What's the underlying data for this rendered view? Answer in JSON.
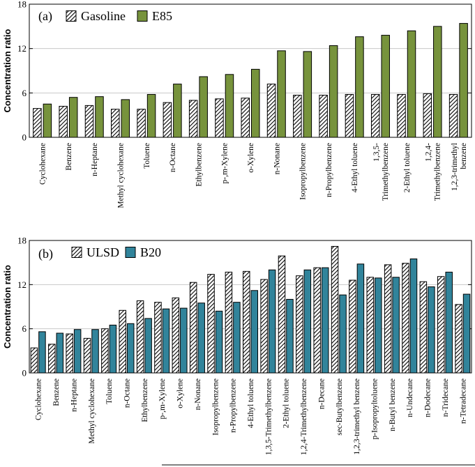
{
  "chart_data": [
    {
      "type": "bar",
      "panel_label": "(a)",
      "ylabel": "Concentration ratio",
      "ylim": [
        0,
        18
      ],
      "yticks": [
        "0",
        "6",
        "12",
        "18"
      ],
      "legend_position": "top-left",
      "categories": [
        "Cyclohexane",
        "Benzene",
        "n-Heptane",
        "Methyl cyclohexane",
        "Toluene",
        "n-Octane",
        "Ethylbenzene",
        "p-,m-Xylene",
        "o-Xylene",
        "n-Nonane",
        "Isopropylbenzene",
        "n-Propylbenzene",
        "4-Ethyl toluene",
        "1,3,5-Trimethylbenzene",
        "2-Ethyl toluene",
        "1,2,4-Trimethylbenzene",
        "1,2,3-trimethyl benzene"
      ],
      "category_lines": [
        [
          "Cyclohexane"
        ],
        [
          "Benzene"
        ],
        [
          "n-Heptane"
        ],
        [
          "Methyl cyclohexane"
        ],
        [
          "Toluene"
        ],
        [
          "n-Octane"
        ],
        [
          "Ethylbenzene"
        ],
        [
          "p-,m-Xylene"
        ],
        [
          "o-Xylene"
        ],
        [
          "n-Nonane"
        ],
        [
          "Isopropylbenzene"
        ],
        [
          "n-Propylbenzene"
        ],
        [
          "4-Ethyl toluene"
        ],
        [
          "1,3,5-",
          "Trimethylbenzene"
        ],
        [
          "2-Ethyl toluene"
        ],
        [
          "1,2,4-",
          "Trimethylbenzene"
        ],
        [
          "1,2,3-trimethyl",
          "benzene"
        ]
      ],
      "series": [
        {
          "name": "Gasoline",
          "pattern": "hatched",
          "values": [
            3.9,
            4.2,
            4.3,
            3.8,
            3.8,
            4.7,
            5.0,
            5.2,
            5.3,
            7.2,
            5.7,
            5.7,
            5.8,
            5.8,
            5.8,
            5.9,
            5.8
          ]
        },
        {
          "name": "E85",
          "pattern": "solid",
          "color": "#77933c",
          "values": [
            4.5,
            5.4,
            5.5,
            5.1,
            5.8,
            7.2,
            8.2,
            8.5,
            9.2,
            11.7,
            11.6,
            12.4,
            13.6,
            13.8,
            14.4,
            15.0,
            15.4
          ]
        }
      ]
    },
    {
      "type": "bar",
      "panel_label": "(b)",
      "ylabel": "Concentration ratio",
      "ylim": [
        0,
        18
      ],
      "yticks": [
        "0",
        "6",
        "12",
        "18"
      ],
      "legend_position": "top-left",
      "categories": [
        "Cyclohexane",
        "Benzene",
        "n-Heptane",
        "Methyl cyclohexane",
        "Toluene",
        "n-Octane",
        "Ethylbenzene",
        "p-,m-Xylene",
        "o-Xylene",
        "n-Nonane",
        "Isopropylbenzene",
        "n-Propylbenzene",
        "4-Ethyl toluene",
        "1,3,5-Trimethylbenzene",
        "2-Ethyl toluene",
        "1,2,4-Trimethylbenzene",
        "n-Decane",
        "sec-Butylbenzene",
        "1,2,3-trimethyl benzene",
        "p-Isopropyltoluene",
        "n-Butyl benzene",
        "n-Undecane",
        "n-Dodecane",
        "n-Tridecane",
        "n-Tetradecane"
      ],
      "category_lines": [
        [
          "Cyclohexane"
        ],
        [
          "Benzene"
        ],
        [
          "n-Heptane"
        ],
        [
          "Methyl cyclohexane"
        ],
        [
          "Toluene"
        ],
        [
          "n-Octane"
        ],
        [
          "Ethylbenzene"
        ],
        [
          "p-,m-Xylene"
        ],
        [
          "o-Xylene"
        ],
        [
          "n-Nonane"
        ],
        [
          "Isopropylbenzene"
        ],
        [
          "n-Propylbenzene"
        ],
        [
          "4-Ethyl toluene"
        ],
        [
          "1,3,5-Trimethylbenzene"
        ],
        [
          "2-Ethyl toluene"
        ],
        [
          "1,2,4-Trimethylbenzene"
        ],
        [
          "n-Decane"
        ],
        [
          "sec-Butylbenzene"
        ],
        [
          "1,2,3-trimethyl benzene"
        ],
        [
          "p-Isopropyltoluene"
        ],
        [
          "n-Butyl benzene"
        ],
        [
          "n-Undecane"
        ],
        [
          "n-Dodecane"
        ],
        [
          "n-Tridecane"
        ],
        [
          "n-Tetradecane"
        ]
      ],
      "series": [
        {
          "name": "ULSD",
          "pattern": "hatched",
          "values": [
            3.4,
            3.9,
            5.3,
            4.7,
            6.0,
            8.5,
            9.8,
            9.6,
            10.2,
            12.3,
            13.4,
            13.7,
            13.8,
            12.7,
            15.9,
            13.2,
            14.3,
            17.2,
            12.6,
            13.0,
            14.7,
            14.9,
            12.4,
            13.1,
            9.3
          ]
        },
        {
          "name": "B20",
          "pattern": "solid",
          "color": "#31849b",
          "values": [
            5.6,
            5.4,
            5.9,
            5.9,
            6.5,
            6.7,
            7.4,
            8.7,
            8.8,
            9.5,
            8.4,
            9.6,
            11.2,
            14.0,
            10.0,
            14.0,
            14.3,
            10.6,
            14.8,
            12.9,
            13.0,
            15.5,
            11.7,
            13.7,
            10.7
          ]
        }
      ]
    }
  ]
}
